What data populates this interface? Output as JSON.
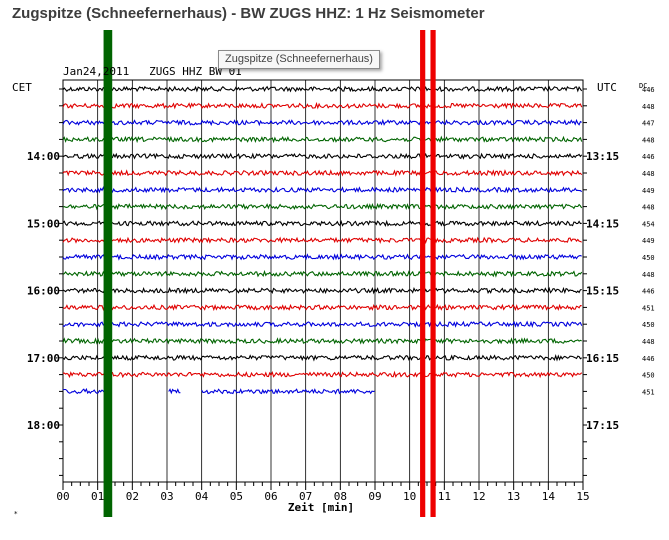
{
  "title": "Zugspitze (Schneefernerhaus) - BW ZUGS HHZ: 1 Hz Seismometer",
  "tooltip": "Zugspitze (Schneefernerhaus)",
  "chart_data": {
    "type": "line",
    "header_text": "Jan24,2011   ZUGS HHZ BW 01",
    "left_timezone": "CET",
    "right_timezone": "UTC",
    "dc_label": "DC",
    "xlabel": "Zeit [min]",
    "xlim": [
      0,
      15
    ],
    "x_ticks": [
      "00",
      "01",
      "02",
      "03",
      "04",
      "05",
      "06",
      "07",
      "08",
      "09",
      "10",
      "11",
      "12",
      "13",
      "14",
      "15"
    ],
    "left_hour_labels": [
      "14:00",
      "15:00",
      "16:00",
      "17:00",
      "18:00"
    ],
    "right_hour_labels": [
      "13:15",
      "14:15",
      "15:15",
      "16:15",
      "17:15"
    ],
    "trace_colors": [
      "#000000",
      "#e00000",
      "#0000dd",
      "#006400"
    ],
    "dc_values": [
      "446",
      "448",
      "447",
      "448",
      "446",
      "448",
      "449",
      "448",
      "454",
      "449",
      "450",
      "448",
      "446",
      "451",
      "450",
      "448",
      "446",
      "450",
      "451"
    ],
    "last_trace_segments": [
      [
        0,
        1.4
      ],
      [
        3.05,
        3.4
      ],
      [
        4.0,
        9.0
      ]
    ],
    "events": [
      {
        "x_start": 1.17,
        "x_end": 1.42,
        "color": "#006400"
      },
      {
        "x_start": 10.3,
        "x_end": 10.45,
        "color": "#ee0000"
      },
      {
        "x_start": 10.6,
        "x_end": 10.75,
        "color": "#ee0000"
      }
    ],
    "grid": true
  }
}
